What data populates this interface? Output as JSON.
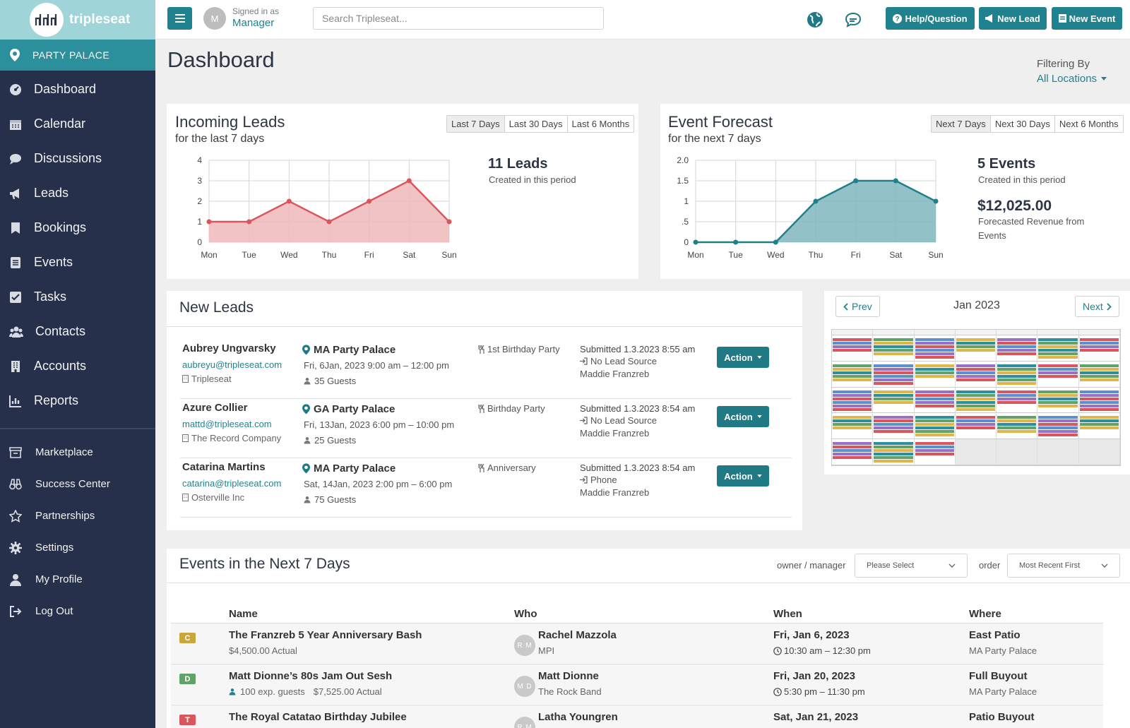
{
  "brand": {
    "logo_text": "tripleseat",
    "accent": "#21828f",
    "sidebar_bg": "#27304a"
  },
  "location": {
    "name": "PARTY PALACE"
  },
  "sidebar": {
    "items": [
      {
        "label": "Dashboard",
        "icon": "dashboard-icon"
      },
      {
        "label": "Calendar",
        "icon": "calendar-icon"
      },
      {
        "label": "Discussions",
        "icon": "discussion-icon"
      },
      {
        "label": "Leads",
        "icon": "megaphone-icon"
      },
      {
        "label": "Bookings",
        "icon": "bookmark-icon"
      },
      {
        "label": "Events",
        "icon": "list-icon"
      },
      {
        "label": "Tasks",
        "icon": "checkbox-icon"
      },
      {
        "label": "Contacts",
        "icon": "users-icon"
      },
      {
        "label": "Accounts",
        "icon": "building-icon"
      },
      {
        "label": "Reports",
        "icon": "chart-icon"
      }
    ],
    "secondary": [
      {
        "label": "Marketplace",
        "icon": "store-icon"
      },
      {
        "label": "Success Center",
        "icon": "binoculars-icon"
      },
      {
        "label": "Partnerships",
        "icon": "star-icon"
      },
      {
        "label": "Settings",
        "icon": "gear-icon"
      },
      {
        "label": "My Profile",
        "icon": "user-icon"
      },
      {
        "label": "Log Out",
        "icon": "logout-icon"
      }
    ]
  },
  "topbar": {
    "avatar_initial": "M",
    "signed_in_label": "Signed in as",
    "signed_in_role": "Manager",
    "search_placeholder": "Search Tripleseat...",
    "help_label": "Help/Question",
    "new_lead_label": "New Lead",
    "new_event_label": "New Event"
  },
  "page": {
    "title": "Dashboard",
    "filter_label": "Filtering By",
    "filter_value": "All Locations"
  },
  "incoming_leads": {
    "title": "Incoming Leads",
    "subtitle": "for the last 7 days",
    "ranges": [
      "Last 7 Days",
      "Last 30 Days",
      "Last 6 Months"
    ],
    "active_range": 0,
    "stat": "11 Leads",
    "stat_note": "Created in this period"
  },
  "event_forecast": {
    "title": "Event Forecast",
    "subtitle": "for the next 7 days",
    "ranges": [
      "Next 7 Days",
      "Next 30 Days",
      "Next 6 Months"
    ],
    "active_range": 0,
    "stat": "5 Events",
    "stat_note": "Created in this period",
    "revenue": "$12,025.00",
    "revenue_note_1": "Forecasted Revenue from",
    "revenue_note_2": "Events"
  },
  "chart_data": [
    {
      "type": "area",
      "categories": [
        "Mon",
        "Tue",
        "Wed",
        "Thu",
        "Fri",
        "Sat",
        "Sun"
      ],
      "values": [
        1,
        1,
        2,
        1,
        2,
        3,
        1
      ],
      "ylim": [
        0,
        4
      ],
      "yticks": [
        "0",
        "1",
        "2",
        "3",
        "4"
      ],
      "color": "#d9575c",
      "fill": "#eeb8bb",
      "grid": true
    },
    {
      "type": "area",
      "categories": [
        "Mon",
        "Tue",
        "Wed",
        "Thu",
        "Fri",
        "Sat",
        "Sun"
      ],
      "values": [
        0,
        0,
        0,
        1,
        1.5,
        1.5,
        1
      ],
      "ylim": [
        0,
        2
      ],
      "yticks": [
        "0",
        ".5",
        "1",
        "1.5",
        "2.0"
      ],
      "color": "#1f7f8a",
      "fill": "#7fb6bd",
      "grid": true
    }
  ],
  "new_leads": {
    "title": "New Leads",
    "action_label": "Action",
    "rows": [
      {
        "name": "Aubrey Ungvarsky",
        "email": "aubreyu@tripleseat.com",
        "company": "Tripleseat",
        "venue": "MA Party Palace",
        "date": "Fri, 6Jan, 2023 9:00 am  – 12:00 pm",
        "guests": "35 Guests",
        "type": "1st Birthday Party",
        "submitted": "Submitted 1.3.2023 8:55 am",
        "source": "No Lead Source",
        "owner": "Maddie Franzreb"
      },
      {
        "name": "Azure Collier",
        "email": "mattd@tripleseat.com",
        "company": "The Record Company",
        "venue": "GA Party Palace",
        "date": "Fri, 13Jan, 2023 6:00 pm  – 10:00 pm",
        "guests": "25 Guests",
        "type": "Birthday Party",
        "submitted": "Submitted 1.3.2023 8:54 am",
        "source": "No Lead Source",
        "owner": "Maddie Franzreb"
      },
      {
        "name": "Catarina Martins",
        "email": "catarina@tripleseat.com",
        "company": "Osterville Inc",
        "venue": "MA Party Palace",
        "date": "Sat, 14Jan, 2023 2:00 pm  – 6:00 pm",
        "guests": "75 Guests",
        "type": "Anniversary",
        "submitted": "Submitted 1.3.2023 8:54 am",
        "source": "Phone",
        "owner": "Maddie Franzreb"
      }
    ]
  },
  "calendar": {
    "prev_label": "Prev",
    "next_label": "Next",
    "month": "Jan 2023",
    "event_colors": [
      "#d9575c",
      "#5fa36a",
      "#5a8fd0",
      "#e0b64a",
      "#9b6fc3",
      "#2b8f9c"
    ]
  },
  "events_next": {
    "title": "Events in the Next 7 Days",
    "owner_label": "owner / manager",
    "owner_select": "Please Select",
    "order_label": "order",
    "order_select": "Most Recent First",
    "columns": [
      "Name",
      "Who",
      "When",
      "Where"
    ],
    "rows": [
      {
        "badge": "C",
        "badge_color": "#c9a73a",
        "name": "The Franzreb 5 Year Anniversary Bash",
        "sub_guests": "",
        "sub_amount": "$4,500.00 Actual",
        "initials": "R M",
        "who": "Rachel Mazzola",
        "who_sub": "MPI",
        "when": "Fri, Jan 6, 2023",
        "time": "10:30 am –  12:30 pm",
        "where": "East Patio",
        "where_sub": "MA Party Palace"
      },
      {
        "badge": "D",
        "badge_color": "#5fa36a",
        "name": "Matt Dionne’s 80s Jam Out Sesh",
        "sub_guests": "100 exp. guests",
        "sub_amount": "$7,525.00 Actual",
        "initials": "M D",
        "who": "Matt Dionne",
        "who_sub": "The Rock Band",
        "when": "Fri, Jan 20, 2023",
        "time": "5:30 pm –  11:30 pm",
        "where": "Full Buyout",
        "where_sub": "MA Party Palace"
      },
      {
        "badge": "T",
        "badge_color": "#d9575c",
        "name": "The Royal Catatao Birthday Jubilee",
        "sub_guests": "",
        "sub_amount": "",
        "initials": "R M",
        "who": "Latha Youngren",
        "who_sub": "",
        "when": "Sat, Jan 21, 2023",
        "time": "",
        "where": "Patio Buyout",
        "where_sub": ""
      }
    ]
  }
}
